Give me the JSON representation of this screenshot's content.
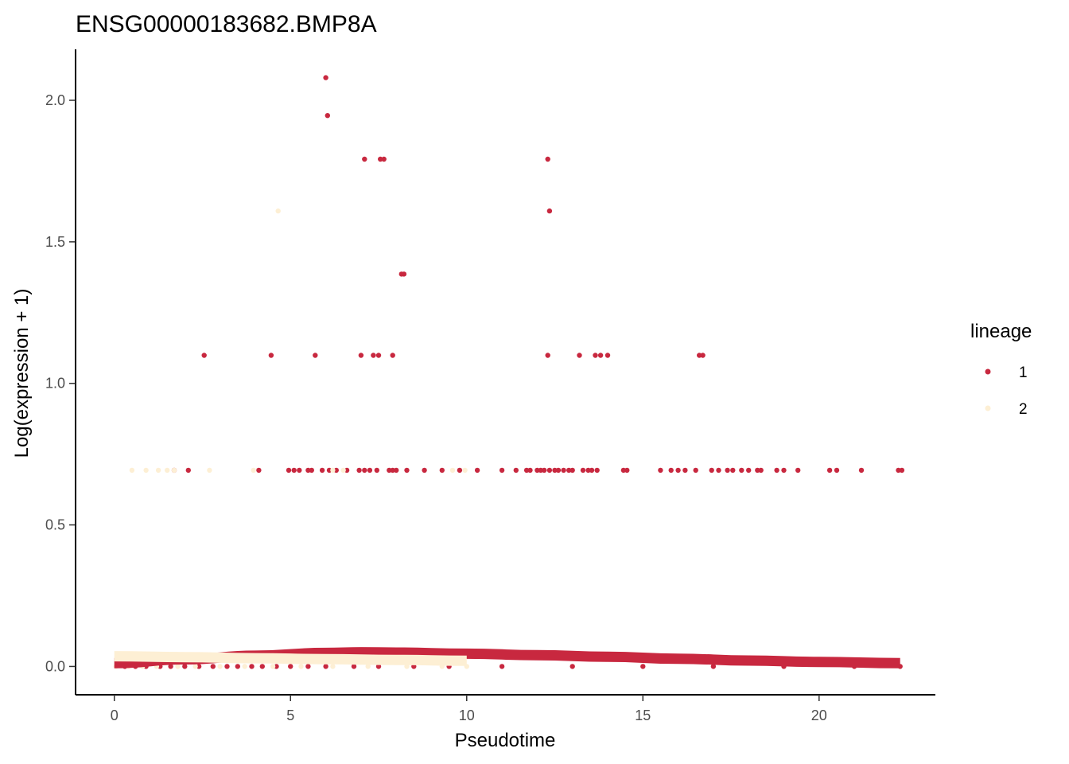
{
  "chart_data": {
    "type": "scatter",
    "title": "ENSG00000183682.BMP8A",
    "xlabel": "Pseudotime",
    "ylabel": "Log(expression + 1)",
    "xlim": [
      -1.1,
      23.3
    ],
    "ylim": [
      -0.1,
      2.18
    ],
    "xticks": [
      0,
      5,
      10,
      15,
      20
    ],
    "yticks": [
      0.0,
      0.5,
      1.0,
      1.5,
      2.0
    ],
    "xtick_labels": [
      "0",
      "5",
      "10",
      "15",
      "20"
    ],
    "ytick_labels": [
      "0.0",
      "0.5",
      "1.0",
      "1.5",
      "2.0"
    ],
    "grid": false,
    "legend": {
      "title": "lineage",
      "position": "right",
      "entries": [
        {
          "label": "1",
          "color": "#C8283F"
        },
        {
          "label": "2",
          "color": "#FDEFD4"
        }
      ]
    },
    "series": [
      {
        "name": "1",
        "color": "#C8283F",
        "points": [
          [
            6.0,
            2.08
          ],
          [
            6.05,
            1.946
          ],
          [
            7.1,
            1.792
          ],
          [
            7.55,
            1.792
          ],
          [
            7.65,
            1.792
          ],
          [
            12.3,
            1.792
          ],
          [
            12.35,
            1.609
          ],
          [
            8.15,
            1.386
          ],
          [
            8.22,
            1.386
          ],
          [
            2.55,
            1.099
          ],
          [
            4.45,
            1.099
          ],
          [
            5.7,
            1.099
          ],
          [
            7.0,
            1.099
          ],
          [
            7.35,
            1.099
          ],
          [
            7.5,
            1.099
          ],
          [
            7.9,
            1.099
          ],
          [
            12.3,
            1.099
          ],
          [
            13.2,
            1.099
          ],
          [
            13.65,
            1.099
          ],
          [
            13.8,
            1.099
          ],
          [
            14.0,
            1.099
          ],
          [
            16.6,
            1.099
          ],
          [
            16.7,
            1.099
          ],
          [
            1.7,
            0.693
          ],
          [
            2.1,
            0.693
          ],
          [
            4.1,
            0.693
          ],
          [
            4.95,
            0.693
          ],
          [
            5.1,
            0.693
          ],
          [
            5.25,
            0.693
          ],
          [
            5.5,
            0.693
          ],
          [
            5.6,
            0.693
          ],
          [
            5.9,
            0.693
          ],
          [
            6.1,
            0.693
          ],
          [
            6.3,
            0.693
          ],
          [
            6.6,
            0.693
          ],
          [
            6.95,
            0.693
          ],
          [
            7.1,
            0.693
          ],
          [
            7.25,
            0.693
          ],
          [
            7.45,
            0.693
          ],
          [
            7.8,
            0.693
          ],
          [
            7.9,
            0.693
          ],
          [
            8.0,
            0.693
          ],
          [
            8.3,
            0.693
          ],
          [
            8.8,
            0.693
          ],
          [
            9.3,
            0.693
          ],
          [
            9.8,
            0.693
          ],
          [
            10.3,
            0.693
          ],
          [
            11.0,
            0.693
          ],
          [
            11.4,
            0.693
          ],
          [
            11.7,
            0.693
          ],
          [
            11.8,
            0.693
          ],
          [
            12.0,
            0.693
          ],
          [
            12.1,
            0.693
          ],
          [
            12.2,
            0.693
          ],
          [
            12.35,
            0.693
          ],
          [
            12.5,
            0.693
          ],
          [
            12.6,
            0.693
          ],
          [
            12.75,
            0.693
          ],
          [
            12.9,
            0.693
          ],
          [
            13.0,
            0.693
          ],
          [
            13.3,
            0.693
          ],
          [
            13.45,
            0.693
          ],
          [
            13.55,
            0.693
          ],
          [
            13.7,
            0.693
          ],
          [
            14.45,
            0.693
          ],
          [
            14.55,
            0.693
          ],
          [
            15.5,
            0.693
          ],
          [
            15.8,
            0.693
          ],
          [
            16.0,
            0.693
          ],
          [
            16.2,
            0.693
          ],
          [
            16.5,
            0.693
          ],
          [
            16.95,
            0.693
          ],
          [
            17.15,
            0.693
          ],
          [
            17.4,
            0.693
          ],
          [
            17.55,
            0.693
          ],
          [
            17.8,
            0.693
          ],
          [
            18.0,
            0.693
          ],
          [
            18.25,
            0.693
          ],
          [
            18.35,
            0.693
          ],
          [
            18.8,
            0.693
          ],
          [
            19.0,
            0.693
          ],
          [
            19.4,
            0.693
          ],
          [
            20.3,
            0.693
          ],
          [
            20.5,
            0.693
          ],
          [
            21.2,
            0.693
          ],
          [
            22.25,
            0.693
          ],
          [
            22.35,
            0.693
          ],
          [
            0.3,
            0.0
          ],
          [
            0.6,
            0.0
          ],
          [
            0.9,
            0.0
          ],
          [
            1.3,
            0.0
          ],
          [
            1.6,
            0.0
          ],
          [
            2.0,
            0.0
          ],
          [
            2.4,
            0.0
          ],
          [
            2.8,
            0.0
          ],
          [
            3.2,
            0.0
          ],
          [
            3.5,
            0.0
          ],
          [
            3.9,
            0.0
          ],
          [
            4.2,
            0.0
          ],
          [
            4.6,
            0.0
          ],
          [
            5.0,
            0.0
          ],
          [
            5.5,
            0.0
          ],
          [
            6.0,
            0.0
          ],
          [
            6.8,
            0.0
          ],
          [
            7.5,
            0.0
          ],
          [
            8.5,
            0.0
          ],
          [
            9.5,
            0.0
          ],
          [
            11.0,
            0.0
          ],
          [
            13.0,
            0.0
          ],
          [
            15.0,
            0.0
          ],
          [
            17.0,
            0.0
          ],
          [
            19.0,
            0.0
          ],
          [
            21.0,
            0.0
          ],
          [
            22.3,
            0.0
          ]
        ]
      },
      {
        "name": "2",
        "color": "#FDEFD4",
        "points": [
          [
            4.65,
            1.609
          ],
          [
            0.5,
            0.693
          ],
          [
            0.9,
            0.693
          ],
          [
            1.25,
            0.693
          ],
          [
            1.5,
            0.693
          ],
          [
            1.7,
            0.693
          ],
          [
            2.7,
            0.693
          ],
          [
            3.95,
            0.693
          ],
          [
            6.2,
            0.693
          ],
          [
            6.5,
            0.693
          ],
          [
            9.6,
            0.693
          ],
          [
            9.95,
            0.693
          ],
          [
            0.05,
            0.0
          ],
          [
            0.4,
            0.0
          ],
          [
            0.8,
            0.0
          ],
          [
            1.2,
            0.0
          ],
          [
            1.8,
            0.0
          ],
          [
            2.3,
            0.0
          ],
          [
            3.0,
            0.0
          ],
          [
            3.7,
            0.0
          ],
          [
            4.5,
            0.0
          ],
          [
            5.3,
            0.0
          ],
          [
            6.2,
            0.0
          ],
          [
            7.2,
            0.0
          ],
          [
            8.3,
            0.0
          ],
          [
            9.3,
            0.0
          ],
          [
            10.0,
            0.0
          ]
        ]
      }
    ],
    "smoothers": [
      {
        "name": "1",
        "color": "#C8283F",
        "x": [
          0,
          2,
          4,
          6,
          7,
          8,
          10,
          12,
          14,
          16,
          18,
          20,
          22.3
        ],
        "y": [
          0.012,
          0.025,
          0.038,
          0.048,
          0.05,
          0.049,
          0.045,
          0.04,
          0.034,
          0.027,
          0.021,
          0.016,
          0.012
        ]
      },
      {
        "name": "2",
        "color": "#FDEFD4",
        "x": [
          0,
          2,
          4,
          6,
          8,
          10
        ],
        "y": [
          0.036,
          0.033,
          0.029,
          0.026,
          0.023,
          0.02
        ]
      }
    ]
  }
}
